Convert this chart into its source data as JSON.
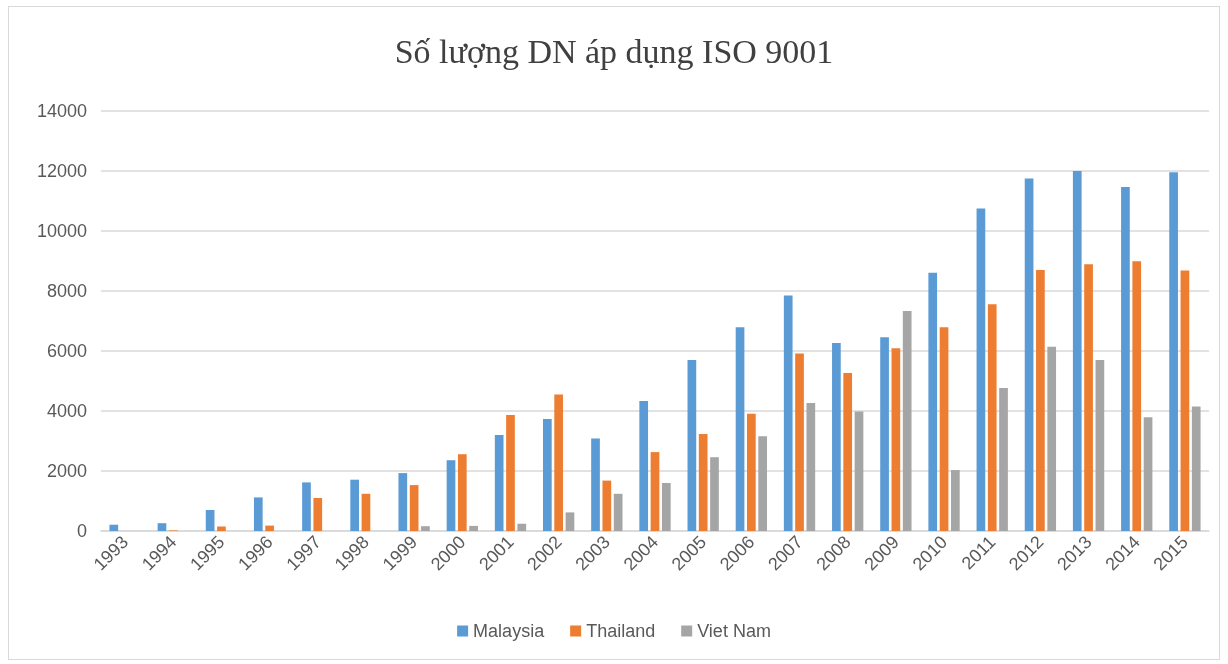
{
  "chart_data": {
    "type": "bar",
    "title": "Số lượng DN áp dụng ISO 9001",
    "categories": [
      "1993",
      "1994",
      "1995",
      "1996",
      "1997",
      "1998",
      "1999",
      "2000",
      "2001",
      "2002",
      "2003",
      "2004",
      "2005",
      "2006",
      "2007",
      "2008",
      "2009",
      "2010",
      "2011",
      "2012",
      "2013",
      "2014",
      "2015"
    ],
    "series": [
      {
        "name": "Malaysia",
        "color": "#5b9bd5",
        "values": [
          210,
          260,
          700,
          1120,
          1620,
          1710,
          1930,
          2360,
          3200,
          3730,
          3080,
          4330,
          5700,
          6790,
          7850,
          6270,
          6460,
          8610,
          10750,
          11750,
          12000,
          11470,
          11960
        ]
      },
      {
        "name": "Thailand",
        "color": "#ed7d31",
        "values": [
          0,
          20,
          150,
          180,
          1100,
          1240,
          1530,
          2560,
          3870,
          4550,
          1680,
          2630,
          3230,
          3910,
          5920,
          5270,
          6090,
          6790,
          7560,
          8700,
          8890,
          8990,
          8680
        ]
      },
      {
        "name": "Viet Nam",
        "color": "#a5a5a5",
        "values": [
          0,
          0,
          0,
          0,
          null,
          null,
          160,
          170,
          240,
          620,
          1240,
          1600,
          2460,
          3160,
          4270,
          3980,
          7330,
          2030,
          4770,
          6140,
          5700,
          3790,
          4150
        ]
      }
    ],
    "ylim": [
      0,
      14000
    ],
    "yticks": [
      0,
      2000,
      4000,
      6000,
      8000,
      10000,
      12000,
      14000
    ],
    "grid": "y",
    "legend": "bottom"
  }
}
